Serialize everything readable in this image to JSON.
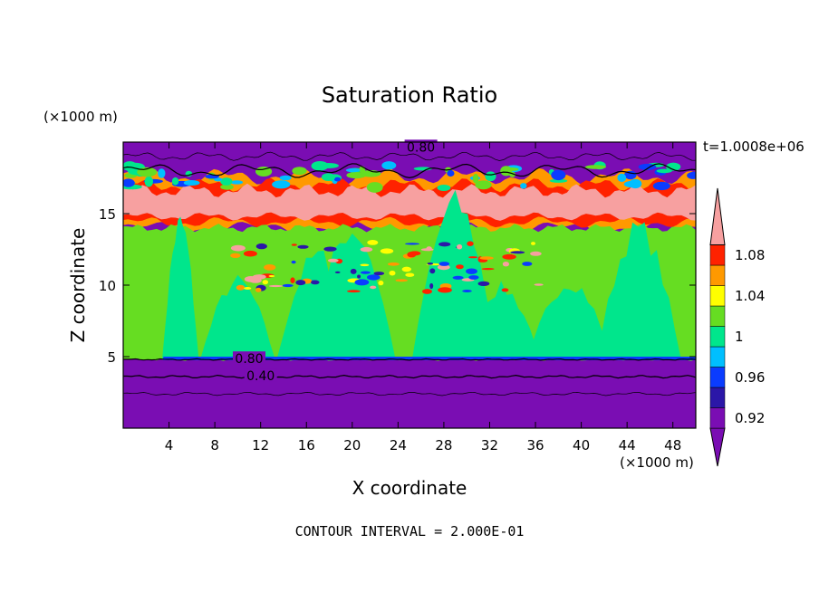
{
  "chart_data": {
    "type": "heatmap",
    "title": "Saturation Ratio",
    "xlabel": "X coordinate",
    "ylabel": "Z coordinate",
    "x_unit": "(×1000 m)",
    "y_unit": "(×1000 m)",
    "xlim": [
      0,
      50
    ],
    "ylim": [
      0,
      20
    ],
    "x_ticks": [
      4,
      8,
      12,
      16,
      20,
      24,
      28,
      32,
      36,
      40,
      44,
      48
    ],
    "y_ticks": [
      5,
      10,
      15
    ],
    "time_label": "t=1.0008e+06",
    "colorbar": {
      "levels": [
        0.92,
        0.94,
        0.96,
        0.98,
        1.0,
        1.02,
        1.04,
        1.06,
        1.08,
        1.1
      ],
      "tick_labels": [
        "0.92",
        "0.96",
        "1",
        "1.04",
        "1.08"
      ],
      "tick_values": [
        0.92,
        0.96,
        1.0,
        1.04,
        1.08
      ],
      "colors": [
        "#7a0db3",
        "#2b17a8",
        "#0a3cff",
        "#00bfff",
        "#00e68c",
        "#66dd22",
        "#ffff00",
        "#ff9900",
        "#ff2200",
        "#f7a0a0"
      ],
      "extend": "both"
    },
    "layers": [
      {
        "z_min": 0,
        "z_max": 4.8,
        "value": "<0.92"
      },
      {
        "z_min": 4.8,
        "z_max": 14,
        "value": "0.98-1.02"
      },
      {
        "z_min": 14,
        "z_max": 17.5,
        "value": ">1.02"
      },
      {
        "z_min": 17.5,
        "z_max": 20,
        "value": "<0.92"
      }
    ],
    "contour_labels": [
      "0.80",
      "0.80",
      "0.40"
    ],
    "contour_interval_text": "CONTOUR INTERVAL = 2.000E-01"
  }
}
